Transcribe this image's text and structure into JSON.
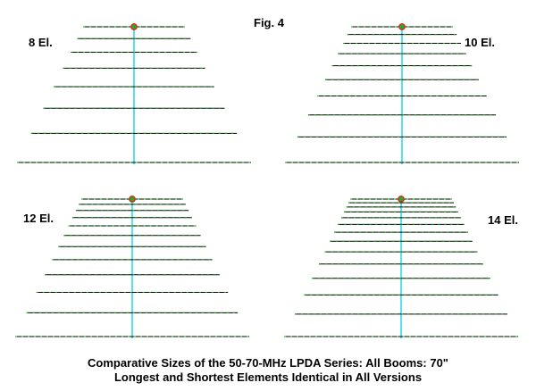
{
  "figure_title": "Fig. 4",
  "caption_line1": "Comparative Sizes of the 50-70-MHz LPDA Series:  All Booms:  70\"",
  "caption_line2": "Longest and Shortest Elements Identical in All Versions",
  "colors": {
    "element": "#000000",
    "element_tick": "#00b000",
    "boom": "#22d8e8",
    "feedpoint_ring": "#e02020",
    "feedpoint_fill": "#20b020",
    "text": "#000000"
  },
  "panels": [
    {
      "id": "8",
      "label": "8 El.",
      "element_count": 8
    },
    {
      "id": "10",
      "label": "10 El.",
      "element_count": 10
    },
    {
      "id": "12",
      "label": "12 El.",
      "element_count": 12
    },
    {
      "id": "14",
      "label": "14 El.",
      "element_count": 14
    }
  ]
}
